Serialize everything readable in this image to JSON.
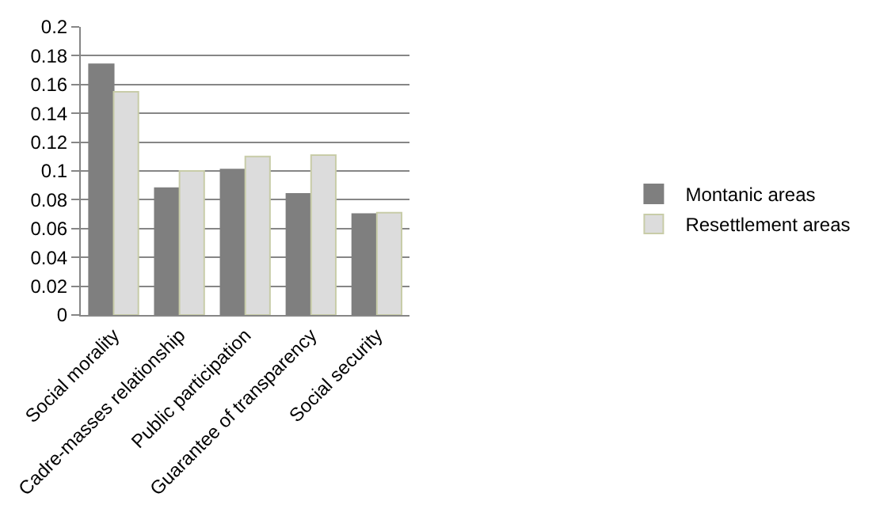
{
  "chart_data": {
    "type": "bar",
    "categories": [
      "Social morality",
      "Cadre-masses relationship",
      "Public participation",
      "Guarantee of transparency",
      "Social security"
    ],
    "series": [
      {
        "name": "Montanic areas",
        "color": "#7f7f7f",
        "values": [
          0.174,
          0.088,
          0.101,
          0.084,
          0.07
        ]
      },
      {
        "name": "Resettlement areas",
        "color": "#dcdcdc",
        "values": [
          0.155,
          0.1,
          0.11,
          0.111,
          0.071
        ]
      }
    ],
    "ylim": [
      0,
      0.2
    ],
    "yticks": [
      0,
      0.02,
      0.04,
      0.06,
      0.08,
      0.1,
      0.12,
      0.14,
      0.16,
      0.18,
      0.2
    ],
    "grid": "y",
    "legend": "right"
  }
}
